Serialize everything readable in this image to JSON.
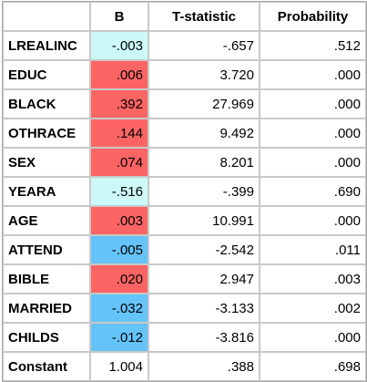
{
  "colors": {
    "positive": "#fc6464",
    "negative_strong": "#64c3f8",
    "negative_weak": "#ccf8f8",
    "neutral": "#ffffff"
  },
  "table": {
    "headers": [
      "",
      "B",
      "T-statistic",
      "Probability"
    ],
    "rows": [
      {
        "var": "LREALINC",
        "b": "-.003",
        "t": "-.657",
        "p": ".512",
        "shade": "negative_weak"
      },
      {
        "var": "EDUC",
        "b": ".006",
        "t": "3.720",
        "p": ".000",
        "shade": "positive"
      },
      {
        "var": "BLACK",
        "b": ".392",
        "t": "27.969",
        "p": ".000",
        "shade": "positive"
      },
      {
        "var": "OTHRACE",
        "b": ".144",
        "t": "9.492",
        "p": ".000",
        "shade": "positive"
      },
      {
        "var": "SEX",
        "b": ".074",
        "t": "8.201",
        "p": ".000",
        "shade": "positive"
      },
      {
        "var": "YEARA",
        "b": "-.516",
        "t": "-.399",
        "p": ".690",
        "shade": "negative_weak"
      },
      {
        "var": "AGE",
        "b": ".003",
        "t": "10.991",
        "p": ".000",
        "shade": "positive"
      },
      {
        "var": "ATTEND",
        "b": "-.005",
        "t": "-2.542",
        "p": ".011",
        "shade": "negative_strong"
      },
      {
        "var": "BIBLE",
        "b": ".020",
        "t": "2.947",
        "p": ".003",
        "shade": "positive"
      },
      {
        "var": "MARRIED",
        "b": "-.032",
        "t": "-3.133",
        "p": ".002",
        "shade": "negative_strong"
      },
      {
        "var": "CHILDS",
        "b": "-.012",
        "t": "-3.816",
        "p": ".000",
        "shade": "negative_strong"
      },
      {
        "var": "Constant",
        "b": "1.004",
        "t": ".388",
        "p": ".698",
        "shade": "neutral"
      }
    ]
  }
}
